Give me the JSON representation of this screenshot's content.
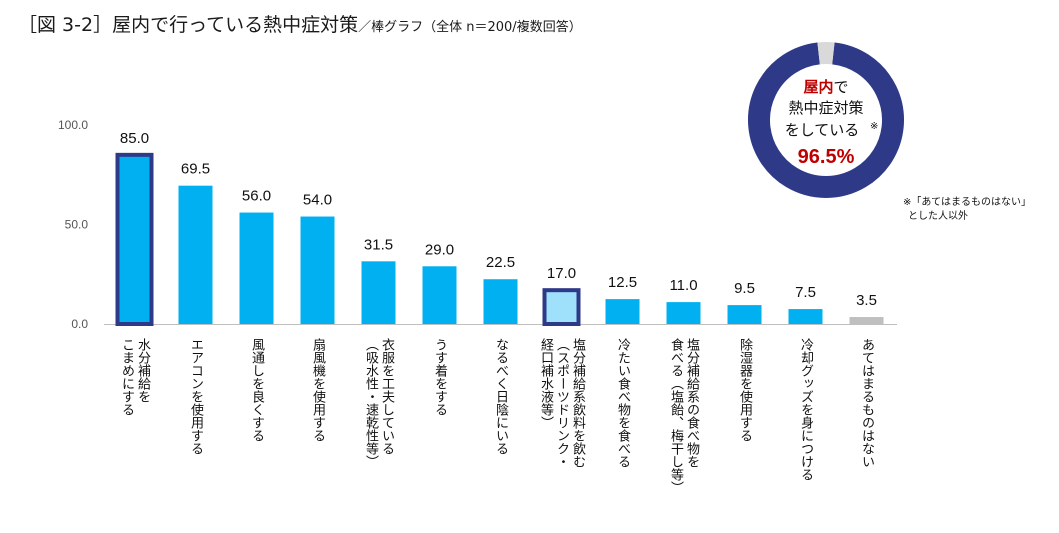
{
  "title": {
    "main": "［図 3-2］屋内で行っている熱中症対策",
    "sub": "／棒グラフ（全体 n＝200/複数回答）"
  },
  "chart_data": {
    "type": "bar",
    "ylim": [
      0,
      100
    ],
    "yticks": [
      "0.0",
      "50.0",
      "100.0"
    ],
    "categories": [
      [
        "水分補給を",
        "こまめにする"
      ],
      [
        "エアコンを使用する"
      ],
      [
        "風通しを良くする"
      ],
      [
        "扇風機を使用する"
      ],
      [
        "衣服を工夫している",
        "（吸水性・速乾性等）"
      ],
      [
        "うす着をする"
      ],
      [
        "なるべく日陰にいる"
      ],
      [
        "塩分補給系飲料を飲む",
        "（スポーツドリンク・",
        "経口補水液等）"
      ],
      [
        "冷たい食べ物を食べる"
      ],
      [
        "塩分補給系の食べ物を",
        "食べる（塩飴、梅干し等）"
      ],
      [
        "除湿器を使用する"
      ],
      [
        "冷却グッズを身につける"
      ],
      [
        "あてはまるものはない"
      ]
    ],
    "values": [
      85.0,
      69.5,
      56.0,
      54.0,
      31.5,
      29.0,
      22.5,
      17.0,
      12.5,
      11.0,
      9.5,
      7.5,
      3.5
    ],
    "value_labels": [
      "85.0",
      "69.5",
      "56.0",
      "54.0",
      "31.5",
      "29.0",
      "22.5",
      "17.0",
      "12.5",
      "11.0",
      "9.5",
      "7.5",
      "3.5"
    ],
    "colors": {
      "bar": "#00b0f0",
      "highlight_bar": "#9fe0fb",
      "highlight_border": "#2e3a87",
      "none_bar": "#bfbfbf",
      "axis": "#bfbfbf"
    },
    "highlight_indices": [
      0,
      7
    ],
    "gray_indices": [
      12
    ],
    "donut": {
      "type": "pie",
      "values": [
        96.5,
        3.5
      ],
      "colors": [
        "#2e3a87",
        "#d9d9d9"
      ],
      "label_red": "屋内",
      "label_rest_line1": "で",
      "label_line2": "熱中症対策",
      "label_line3": "をしている",
      "label_mark": "※",
      "percent": "96.5%",
      "note_line1": "※「あてはまるものはない」",
      "note_line2": "とした人以外"
    }
  }
}
